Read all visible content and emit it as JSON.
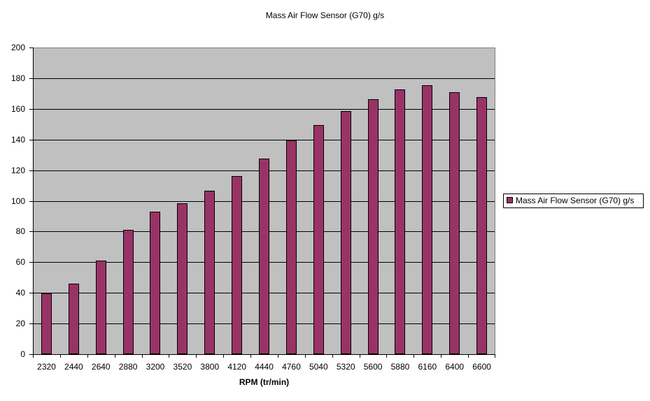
{
  "chart_data": {
    "type": "bar",
    "title": "Mass Air Flow Sensor (G70)  g/s",
    "xlabel": "RPM (tr/min)",
    "ylabel": "",
    "ylim": [
      0,
      200
    ],
    "yticks": [
      0,
      20,
      40,
      60,
      80,
      100,
      120,
      140,
      160,
      180,
      200
    ],
    "grid": true,
    "legend_position": "right",
    "categories": [
      "2320",
      "2440",
      "2640",
      "2880",
      "3200",
      "3520",
      "3800",
      "4120",
      "4440",
      "4760",
      "5040",
      "5320",
      "5600",
      "5880",
      "6160",
      "6400",
      "6600"
    ],
    "series": [
      {
        "name": "Mass Air Flow Sensor (G70)  g/s",
        "color": "#993366",
        "values": [
          39.5,
          46,
          61,
          81,
          93,
          98.5,
          106.5,
          116,
          127.5,
          139.5,
          149.5,
          158.5,
          166.5,
          172.5,
          175.5,
          171,
          167.5
        ]
      }
    ]
  },
  "legend": {
    "label": "Mass Air Flow Sensor (G70)  g/s"
  },
  "colors": {
    "plot_bg": "#c0c0c0",
    "bar": "#993366"
  }
}
